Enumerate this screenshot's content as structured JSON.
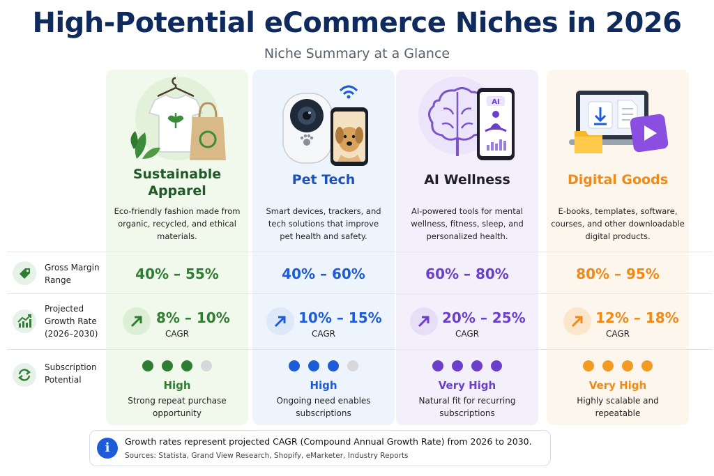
{
  "header": {
    "title": "High-Potential eCommerce Niches in 2026",
    "subtitle": "Niche Summary at a Glance"
  },
  "rows": {
    "margin": [
      "Gross Margin",
      "Range"
    ],
    "growth": [
      "Projected",
      "Growth Rate",
      "(2026–2030)"
    ],
    "subscription": [
      "Subscription",
      "Potential"
    ]
  },
  "niches": [
    {
      "name_lines": [
        "Sustainable",
        "Apparel"
      ],
      "description_lines": [
        "Eco-friendly fashion made from",
        "organic, recycled, and ethical",
        "materials."
      ],
      "gross_margin": "40% – 55%",
      "growth_rate": "8% – 10%",
      "growth_unit": "CAGR",
      "subscription_level": "High",
      "subscription_dots_filled": 3,
      "subscription_dots_total": 4,
      "subscription_note_lines": [
        "Strong repeat purchase",
        "opportunity"
      ],
      "accent": "#2e7d32",
      "bg": "#f1f8ec",
      "illustration": "tshirt-bag-leaf-icon"
    },
    {
      "name_lines": [
        "Pet Tech"
      ],
      "description_lines": [
        "Smart devices, trackers, and",
        "tech solutions that improve",
        "pet health and safety."
      ],
      "gross_margin": "40% – 60%",
      "growth_rate": "10% – 15%",
      "growth_unit": "CAGR",
      "subscription_level": "High",
      "subscription_dots_filled": 3,
      "subscription_dots_total": 4,
      "subscription_note_lines": [
        "Ongoing need enables",
        "subscriptions"
      ],
      "accent": "#1d5bd8",
      "bg": "#eef4fc",
      "illustration": "pet-camera-phone-icon"
    },
    {
      "name_lines": [
        "AI Wellness"
      ],
      "description_lines": [
        "AI-powered tools for mental",
        "wellness, fitness, sleep, and",
        "personalized health."
      ],
      "gross_margin": "60% – 80%",
      "growth_rate": "20% – 25%",
      "growth_unit": "CAGR",
      "subscription_level": "Very High",
      "subscription_dots_filled": 4,
      "subscription_dots_total": 4,
      "subscription_note_lines": [
        "Natural fit for recurring",
        "subscriptions"
      ],
      "accent": "#6b3fc9",
      "bg": "#f4f0fb",
      "illustration": "brain-phone-meditation-icon"
    },
    {
      "name_lines": [
        "Digital Goods"
      ],
      "description_lines": [
        "E-books, templates, software,",
        "courses, and other downloadable",
        "digital products."
      ],
      "gross_margin": "80% – 95%",
      "growth_rate": "12% – 18%",
      "growth_unit": "CAGR",
      "subscription_level": "Very High",
      "subscription_dots_filled": 4,
      "subscription_dots_total": 4,
      "subscription_note_lines": [
        "Highly scalable and",
        "repeatable"
      ],
      "accent": "#ef8a17",
      "bg": "#fdf6ec",
      "illustration": "laptop-download-folder-icon"
    }
  ],
  "footnote": {
    "main": "Growth rates represent projected CAGR (Compound Annual Growth Rate) from 2026 to 2030.",
    "sources": "Sources: Statista, Grand View Research, Shopify, eMarketer, Industry Reports"
  },
  "colors": {
    "title": "#0f2a5c",
    "row_icon_green": "#2e7d32",
    "dot_empty": "#d6d8dc",
    "info_blue": "#1d5bd8"
  }
}
